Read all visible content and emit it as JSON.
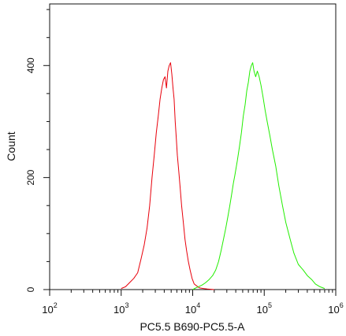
{
  "chart_data": {
    "type": "line",
    "title": "",
    "xlabel": "PC5.5 B690-PC5.5-A",
    "ylabel": "Count",
    "xscale": "log",
    "xlim": [
      100,
      1000000
    ],
    "ylim": [
      0,
      510
    ],
    "x_ticks": [
      {
        "value": 100,
        "base": "10",
        "exp": "2"
      },
      {
        "value": 1000,
        "base": "10",
        "exp": "3"
      },
      {
        "value": 10000,
        "base": "10",
        "exp": "4"
      },
      {
        "value": 100000,
        "base": "10",
        "exp": "5"
      },
      {
        "value": 1000000,
        "base": "10",
        "exp": "6"
      }
    ],
    "y_ticks": [
      {
        "value": 0,
        "label": "0"
      },
      {
        "value": 200,
        "label": "200"
      },
      {
        "value": 400,
        "label": "400"
      }
    ],
    "grid": false,
    "legend": "none",
    "series": [
      {
        "color": "#e8000b",
        "x": [
          1000,
          1150,
          1300,
          1500,
          1700,
          1900,
          2100,
          2300,
          2500,
          2700,
          2900,
          3100,
          3300,
          3500,
          3700,
          3900,
          4100,
          4300,
          4500,
          4700,
          4900,
          5100,
          5300,
          5500,
          5700,
          5900,
          6100,
          6400,
          6700,
          7000,
          7400,
          7800,
          8200,
          8700,
          9200,
          9800,
          10500,
          11500,
          12500,
          14000,
          16000,
          20000
        ],
        "y": [
          2,
          5,
          12,
          20,
          30,
          55,
          80,
          110,
          150,
          200,
          240,
          280,
          310,
          340,
          360,
          375,
          380,
          360,
          390,
          400,
          405,
          385,
          360,
          340,
          300,
          270,
          240,
          210,
          180,
          150,
          120,
          90,
          70,
          50,
          35,
          20,
          10,
          6,
          3,
          2,
          1,
          0
        ]
      },
      {
        "color": "#22ee00",
        "x": [
          10000,
          11000,
          12000,
          13500,
          15000,
          17000,
          19000,
          21000,
          23000,
          25000,
          27000,
          29000,
          31000,
          33000,
          35000,
          37000,
          39000,
          42000,
          45000,
          48000,
          51000,
          54000,
          57000,
          60000,
          63000,
          66000,
          69000,
          72000,
          76000,
          80000,
          85000,
          90000,
          96000,
          103000,
          110000,
          120000,
          130000,
          145000,
          160000,
          180000,
          200000,
          230000,
          260000,
          300000,
          350000,
          400000,
          460000,
          520000,
          600000,
          700000
        ],
        "y": [
          0,
          3,
          5,
          8,
          12,
          18,
          25,
          35,
          50,
          70,
          90,
          110,
          130,
          150,
          170,
          190,
          205,
          230,
          255,
          280,
          310,
          330,
          355,
          370,
          390,
          400,
          405,
          390,
          380,
          390,
          380,
          365,
          345,
          320,
          300,
          275,
          250,
          220,
          185,
          150,
          120,
          90,
          65,
          45,
          35,
          25,
          18,
          10,
          5,
          2
        ]
      }
    ]
  }
}
